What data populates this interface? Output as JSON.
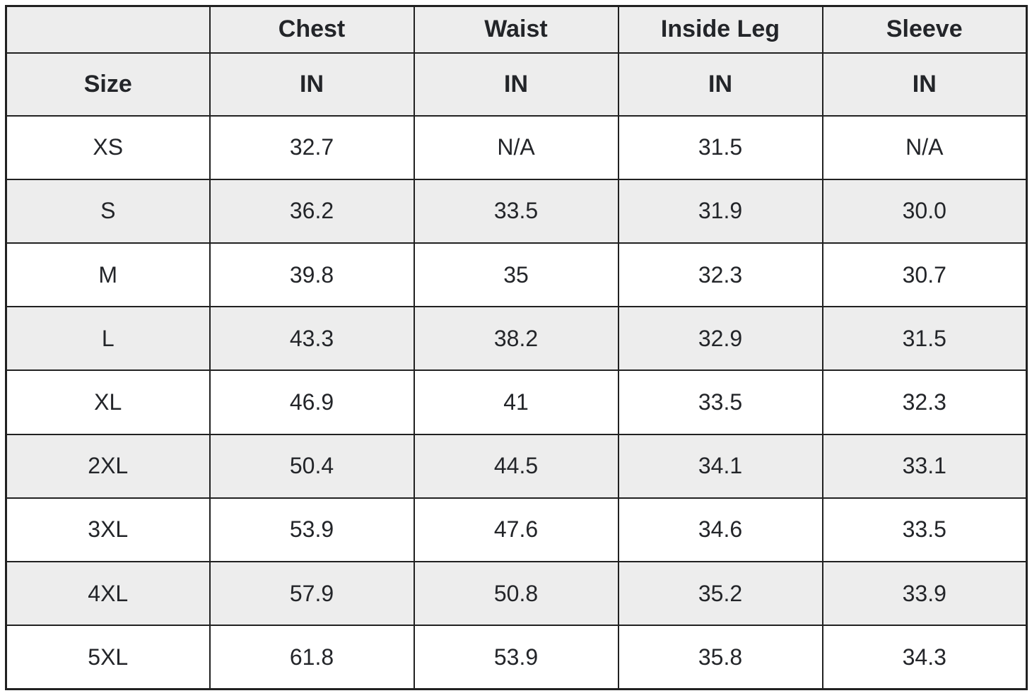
{
  "chart_data": {
    "type": "table",
    "header_row": [
      "",
      "Chest",
      "Waist",
      "Inside Leg",
      "Sleeve"
    ],
    "unit_row": [
      "Size",
      "IN",
      "IN",
      "IN",
      "IN"
    ],
    "rows": [
      [
        "XS",
        "32.7",
        "N/A",
        "31.5",
        "N/A"
      ],
      [
        "S",
        "36.2",
        "33.5",
        "31.9",
        "30.0"
      ],
      [
        "M",
        "39.8",
        "35",
        "32.3",
        "30.7"
      ],
      [
        "L",
        "43.3",
        "38.2",
        "32.9",
        "31.5"
      ],
      [
        "XL",
        "46.9",
        "41",
        "33.5",
        "32.3"
      ],
      [
        "2XL",
        "50.4",
        "44.5",
        "34.1",
        "33.1"
      ],
      [
        "3XL",
        "53.9",
        "47.6",
        "34.6",
        "33.5"
      ],
      [
        "4XL",
        "57.9",
        "50.8",
        "35.2",
        "33.9"
      ],
      [
        "5XL",
        "61.8",
        "53.9",
        "35.8",
        "34.3"
      ]
    ],
    "layout": {
      "grid": "all-borders",
      "striped_rows": true
    }
  },
  "colors": {
    "header_fill": "#ededed",
    "stripe_fill": "#ededed",
    "row_fill": "#ffffff",
    "border": "#212121",
    "text": "#232529"
  }
}
